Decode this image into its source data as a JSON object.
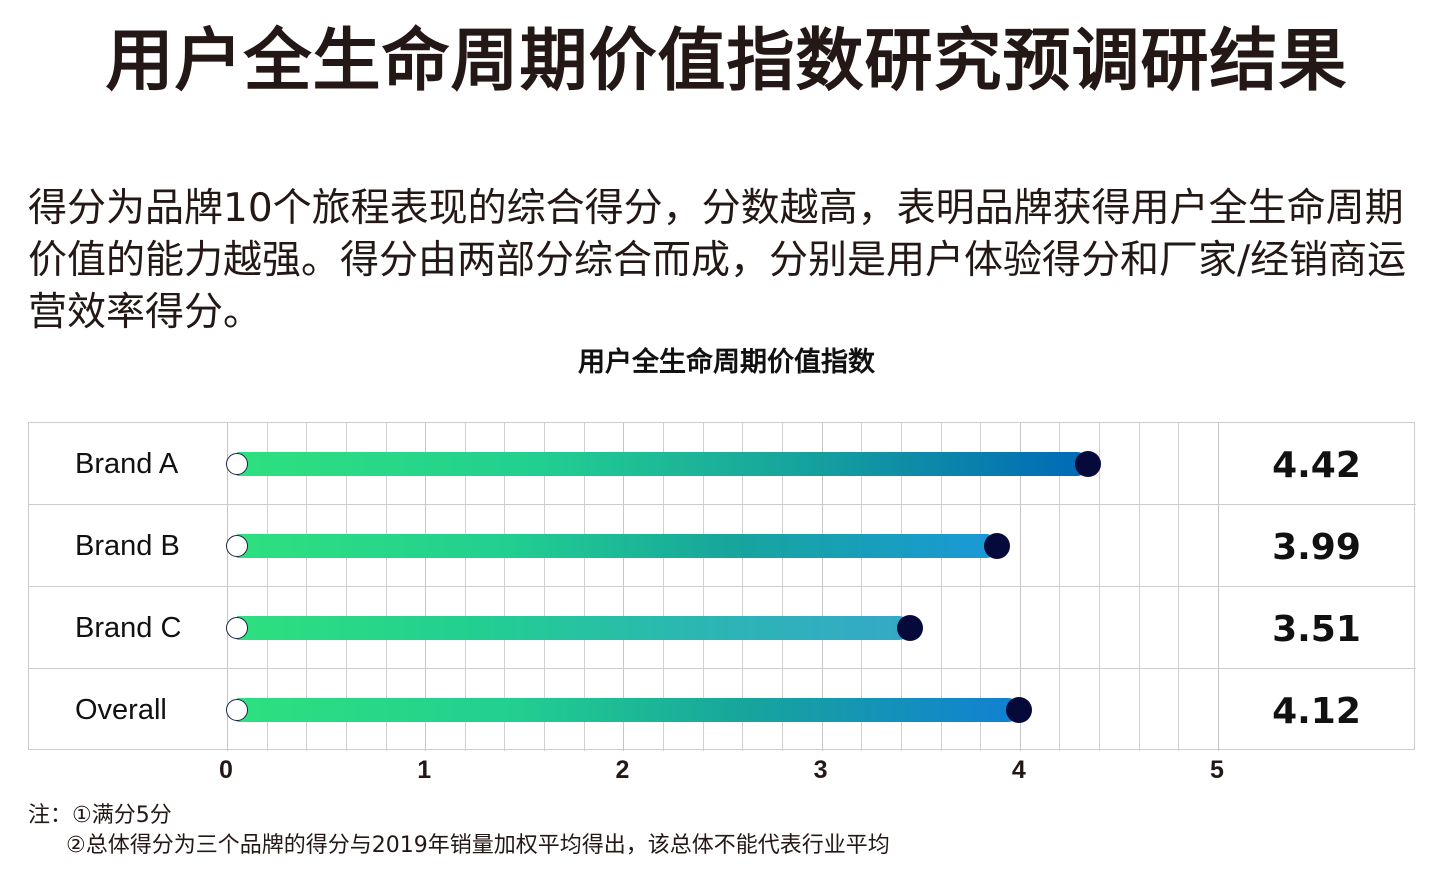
{
  "header": {
    "title": "用户全生命周期价值指数研究预调研结果"
  },
  "description": "得分为品牌10个旅程表现的综合得分，分数越高，表明品牌获得用户全生命周期价值的能力越强。得分由两部分综合而成，分别是用户体验得分和厂家/经销商运营效率得分。",
  "chart_data": {
    "type": "bar",
    "orientation": "horizontal",
    "title": "用户全生命周期价值指数",
    "categories": [
      "Brand A",
      "Brand B",
      "Brand C",
      "Overall"
    ],
    "values": [
      4.42,
      3.99,
      3.51,
      4.12
    ],
    "value_labels": [
      "4.42",
      "3.99",
      "3.51",
      "4.12"
    ],
    "xlabel": "",
    "ylabel": "",
    "xlim": [
      0,
      5
    ],
    "x_ticks": [
      "0",
      "1",
      "2",
      "3",
      "4",
      "5"
    ],
    "grid": true,
    "minor_grid_step": 0.2,
    "legend": null,
    "bar_gradient": {
      "start": "#2ee07f",
      "mid": "#17a59c",
      "end_a": "#0068b7",
      "end_b": "#1a98d8",
      "end_c": "#35a8c8",
      "end_overall": "#1180d4"
    },
    "end_dot_color": "#050a3a",
    "visual_end_positions": [
      4.35,
      3.89,
      3.45,
      4.0
    ]
  },
  "notes": {
    "line1": "注：①满分5分",
    "line2": "②总体得分为三个品牌的得分与2019年销量加权平均得出，该总体不能代表行业平均"
  }
}
